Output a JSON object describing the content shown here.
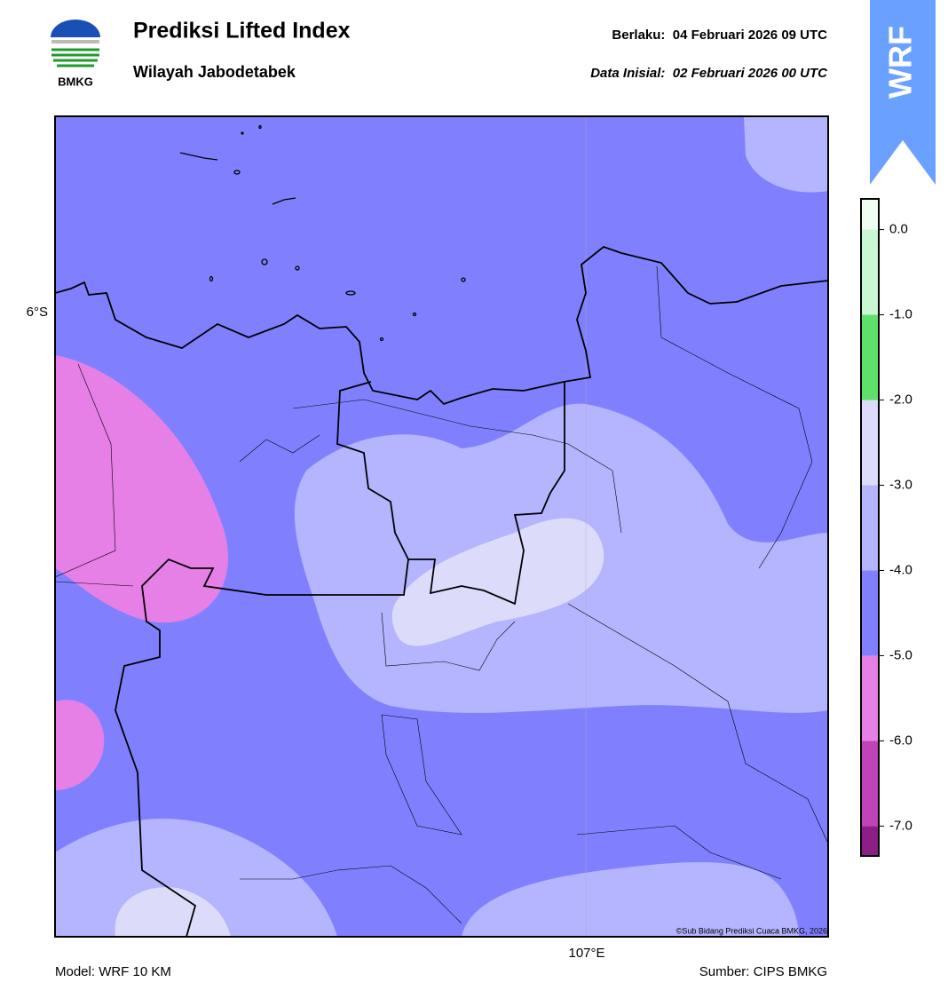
{
  "header": {
    "logo_text": "BMKG",
    "title": "Prediksi Lifted Index",
    "subtitle": "Wilayah Jabodetabek",
    "valid": "Berlaku:  04 Februari 2026 09 UTC",
    "init": "Data Inisial:  02 Februari 2026 00 UTC",
    "badge": "WRF"
  },
  "map": {
    "lat_label": "6°S",
    "lon_label": "107°E",
    "credit": "©Sub Bidang Prediksi Cuaca BMKG, 2026"
  },
  "colorbar": {
    "lim": [
      -7.35,
      0.36
    ],
    "levels": [
      -7.35,
      -7,
      -6,
      -5,
      -4,
      -3,
      -2,
      -1,
      0,
      0.36
    ],
    "colors": [
      "#8c1f86",
      "#c043b8",
      "#e680e6",
      "#8080ff",
      "#b4b4ff",
      "#dcdcfa",
      "#5ee06a",
      "#c9f7d4",
      "#eefff2"
    ],
    "ticks": [
      {
        "value": 0,
        "label": "0.0"
      },
      {
        "value": -1,
        "label": "-1.0"
      },
      {
        "value": -2,
        "label": "-2.0"
      },
      {
        "value": -3,
        "label": "-3.0"
      },
      {
        "value": -4,
        "label": "-4.0"
      },
      {
        "value": -5,
        "label": "-5.0"
      },
      {
        "value": -6,
        "label": "-6.0"
      },
      {
        "value": -7,
        "label": "-7.0"
      }
    ]
  },
  "footer": {
    "model": "Model: WRF 10 KM",
    "source": "Sumber: CIPS BMKG"
  }
}
